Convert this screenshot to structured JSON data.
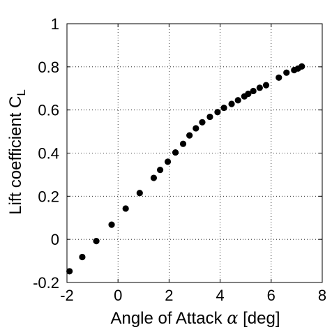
{
  "chart_data": {
    "type": "scatter",
    "title": "",
    "xlabel": "Angle of Attack α [deg]",
    "xlabel_text": "Angle of Attack ",
    "xlabel_symbol": "α",
    "xlabel_unit": " [deg]",
    "ylabel": "Lift coefficient C_L",
    "ylabel_text": "Lift coefficient C",
    "ylabel_sub": "L",
    "xlim": [
      -2,
      8
    ],
    "ylim": [
      -0.2,
      1
    ],
    "grid": true,
    "grid_style": "dotted",
    "xticks": [
      -2,
      0,
      2,
      4,
      6,
      8
    ],
    "xtick_labels": [
      "-2",
      "0",
      "2",
      "4",
      "6",
      "8"
    ],
    "yticks": [
      -0.2,
      0,
      0.2,
      0.4,
      0.6,
      0.8,
      1
    ],
    "ytick_labels": [
      "-0.2",
      "0",
      "0.2",
      "0.4",
      "0.6",
      "0.8",
      "1"
    ],
    "marker_color": "#000000",
    "points": [
      {
        "x": -1.9,
        "y": -0.148
      },
      {
        "x": -1.4,
        "y": -0.082
      },
      {
        "x": -0.85,
        "y": -0.008
      },
      {
        "x": -0.25,
        "y": 0.068
      },
      {
        "x": 0.3,
        "y": 0.143
      },
      {
        "x": 0.85,
        "y": 0.215
      },
      {
        "x": 1.4,
        "y": 0.285
      },
      {
        "x": 1.65,
        "y": 0.322
      },
      {
        "x": 1.95,
        "y": 0.36
      },
      {
        "x": 2.25,
        "y": 0.403
      },
      {
        "x": 2.55,
        "y": 0.443
      },
      {
        "x": 2.8,
        "y": 0.482
      },
      {
        "x": 3.05,
        "y": 0.515
      },
      {
        "x": 3.3,
        "y": 0.543
      },
      {
        "x": 3.6,
        "y": 0.568
      },
      {
        "x": 3.9,
        "y": 0.59
      },
      {
        "x": 4.15,
        "y": 0.61
      },
      {
        "x": 4.45,
        "y": 0.628
      },
      {
        "x": 4.7,
        "y": 0.645
      },
      {
        "x": 4.95,
        "y": 0.663
      },
      {
        "x": 5.1,
        "y": 0.675
      },
      {
        "x": 5.3,
        "y": 0.688
      },
      {
        "x": 5.55,
        "y": 0.703
      },
      {
        "x": 5.8,
        "y": 0.715
      },
      {
        "x": 6.3,
        "y": 0.75
      },
      {
        "x": 6.6,
        "y": 0.773
      },
      {
        "x": 6.9,
        "y": 0.785
      },
      {
        "x": 7.05,
        "y": 0.792
      },
      {
        "x": 7.2,
        "y": 0.802
      }
    ]
  }
}
